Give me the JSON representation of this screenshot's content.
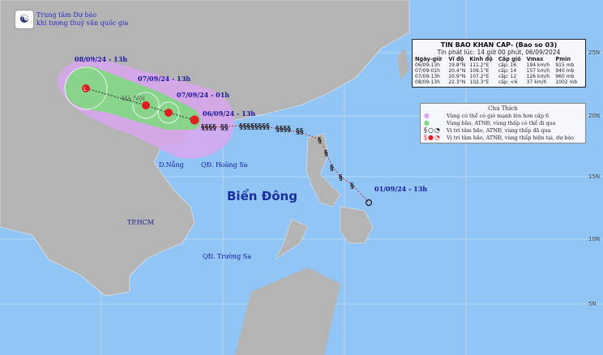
{
  "header": {
    "org_line1": "Trung tâm Dự báo",
    "org_line2": "khí tượng thuỷ văn quốc gia",
    "logo_text": "NCHMF"
  },
  "bulletin": {
    "title": "TIN BAO KHAN CAP- (Bao so 03)",
    "issued": "Tin phát lúc: 14 giờ 00 phút, 06/09/2024",
    "columns": [
      "Ngày-giờ",
      "Vĩ độ",
      "Kinh độ",
      "Cấp gió",
      "Vmax",
      "Pmin"
    ],
    "rows": [
      [
        "06/09-13h",
        "19.8°N",
        "111.2°E",
        "cấp: 16",
        "194 km/h",
        "915 mb"
      ],
      [
        "07/09-01h",
        "20.4°N",
        "109.1°E",
        "cấp: 14",
        "157 km/h",
        "940 mb"
      ],
      [
        "07/09-13h",
        "20.9°N",
        "107.2°E",
        "cấp: 12",
        "126 km/h",
        "960 mb"
      ],
      [
        "08/09-13h",
        "22.3°N",
        "102.3°E",
        "cấp: <6",
        "37 km/h",
        "1002 mb"
      ]
    ]
  },
  "legend": {
    "title": "Chú Thích",
    "items": [
      {
        "symbol": "●",
        "color": "#d9a6ee",
        "label": "Vùng có thể có gió mạnh lên hơn cấp 6"
      },
      {
        "symbol": "●",
        "color": "#7fd87f",
        "label": "Vùng bão, ATNĐ, vùng thấp có thể đi qua"
      },
      {
        "symbol": "§○◔",
        "color": "#111111",
        "label": "Vị trí tâm bão, ATNĐ, vùng thấp đã qua"
      },
      {
        "symbol": "§●◔",
        "color": "#e02020",
        "label": "Vị trí tâm bão, ATNĐ, vùng thấp hiện tại, dự báo"
      }
    ]
  },
  "track_labels": [
    "08/09/24 - 13h",
    "07/09/24 - 13h",
    "07/09/24 - 01h",
    "06/09/24 - 13h",
    "01/09/24 - 13h"
  ],
  "places": {
    "hanoi": "Hà Nội",
    "danang": "D.Nẵng",
    "hoangsa": "QĐ. Hoàng Sa",
    "hcm": "TP.HCM",
    "truongsa": "QĐ. Trường Sa",
    "sea": "Biển Đông"
  },
  "latitudes": [
    "25N",
    "20N",
    "15N",
    "10N",
    "5N"
  ],
  "colors": {
    "sea": "#91c5f5",
    "land": "#b4b4b4",
    "wind_zone": "#d9a6ee",
    "storm_zone": "#7fd87f",
    "current": "#e02020"
  }
}
